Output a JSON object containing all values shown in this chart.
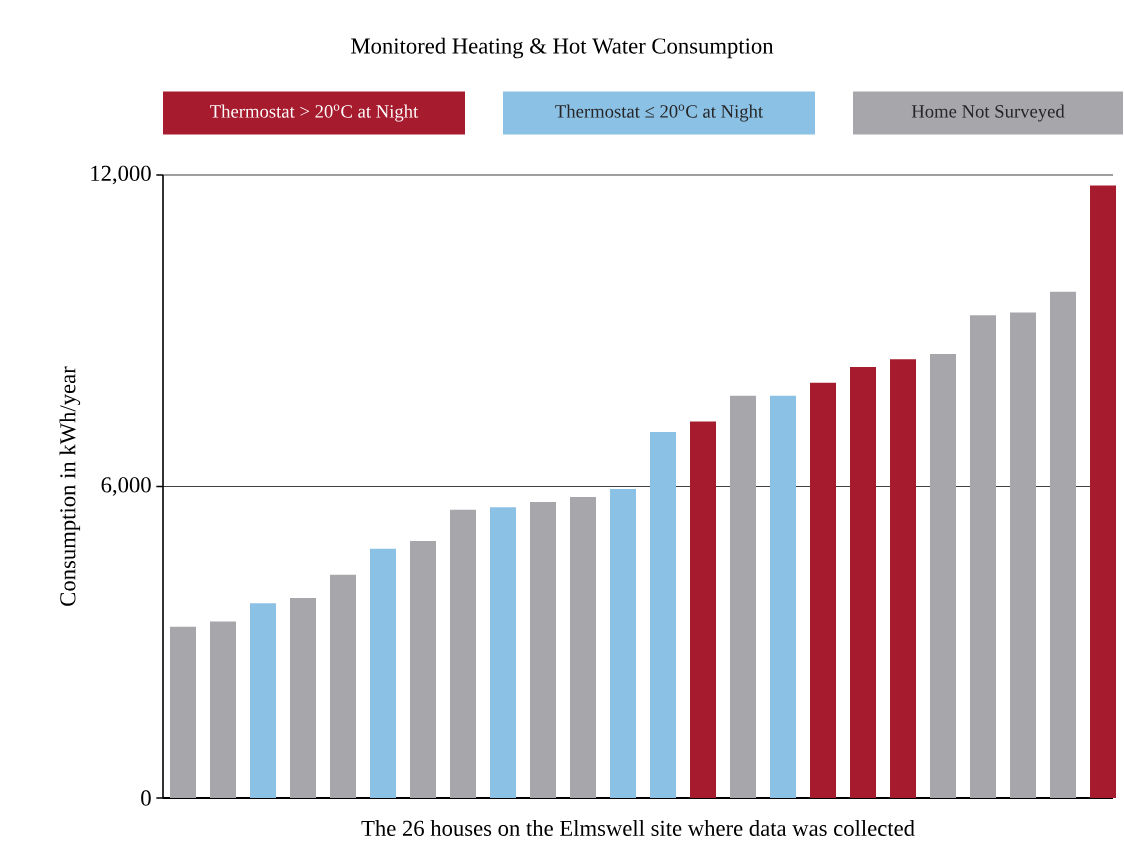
{
  "chart_data": {
    "type": "bar",
    "title": "Monitored Heating & Hot Water Consumption",
    "xlabel": "The 26 houses on the Elmswell site where data was collected",
    "ylabel": "Consumption in kWh/year",
    "categories": [
      null,
      null,
      null,
      null,
      null,
      null,
      null,
      null,
      null,
      null,
      null,
      null,
      null,
      null,
      null,
      null,
      null,
      null,
      null,
      null,
      null,
      null,
      null,
      null
    ],
    "series": [
      {
        "name": "Thermostat > 20$^{o}$C at Night",
        "color": "#a61c2e",
        "values": [
          null,
          null,
          null,
          null,
          null,
          null,
          null,
          null,
          null,
          null,
          null,
          null,
          null,
          7250,
          null,
          null,
          8000,
          8300,
          8450,
          null,
          null,
          null,
          null,
          11800
        ]
      },
      {
        "name": "Thermostat ≤ 20$^{o}$C at Night",
        "color": "#8cc1e6",
        "values": [
          null,
          null,
          3750,
          null,
          null,
          4800,
          null,
          null,
          5600,
          null,
          null,
          5950,
          7050,
          null,
          null,
          7750,
          null,
          null,
          null,
          null,
          null,
          null,
          null,
          null
        ]
      },
      {
        "name": "Home Not Surveyed",
        "color": "#a7a6aa",
        "values": [
          3300,
          3400,
          null,
          3850,
          4300,
          null,
          4950,
          5550,
          null,
          5700,
          5800,
          null,
          null,
          null,
          7750,
          null,
          null,
          null,
          null,
          8550,
          9300,
          9350,
          9750,
          null
        ]
      }
    ],
    "ylim": [
      0,
      12000
    ],
    "yticks": [
      0,
      {
        "value": 6000,
        "label": "6,000"
      },
      {
        "value": 12000,
        "label": "12,000"
      }
    ],
    "grid": "y",
    "legend": "top"
  }
}
